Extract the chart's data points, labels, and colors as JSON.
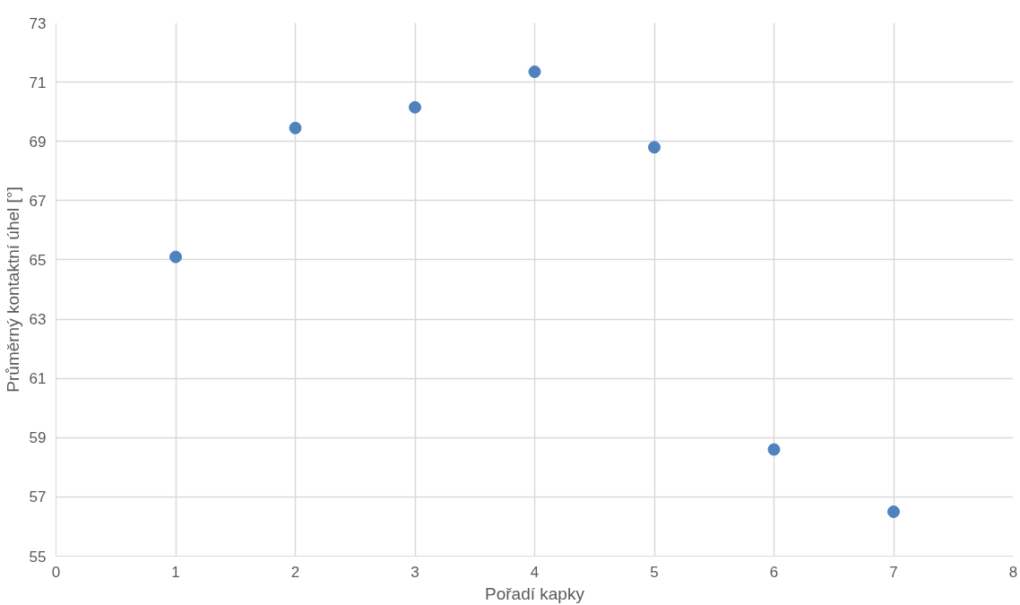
{
  "chart_data": {
    "type": "scatter",
    "xlabel": "Pořadí kapky",
    "ylabel": "Průměrný kontaktní úhel [°]",
    "x": [
      1,
      2,
      3,
      4,
      5,
      6,
      7
    ],
    "series": [
      {
        "color": "#4f81bd",
        "values": [
          65.1,
          69.45,
          70.15,
          71.35,
          68.8,
          58.6,
          56.5
        ]
      }
    ],
    "xlim": [
      0,
      8
    ],
    "ylim": [
      55,
      73
    ],
    "xticks": [
      0,
      1,
      2,
      3,
      4,
      5,
      6,
      7,
      8
    ],
    "yticks": [
      55,
      57,
      59,
      61,
      63,
      65,
      67,
      69,
      71,
      73
    ],
    "grid": true,
    "marker": "circle"
  }
}
